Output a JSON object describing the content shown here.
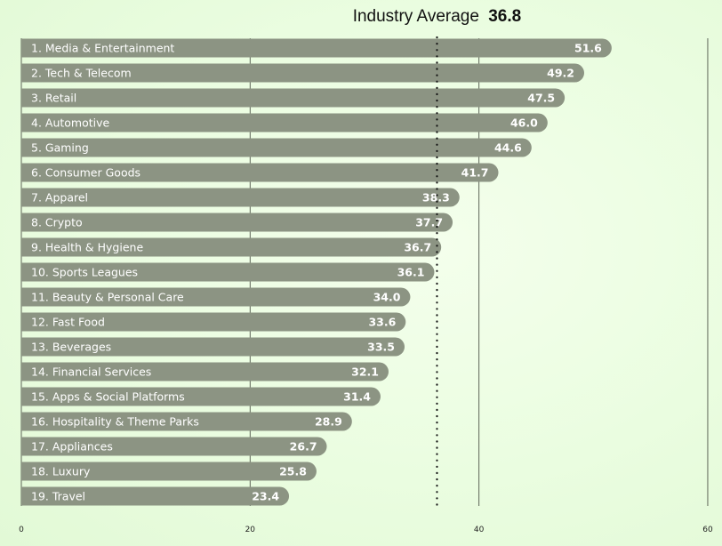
{
  "chart_data": {
    "type": "bar",
    "orientation": "horizontal",
    "title": "",
    "xlabel": "",
    "ylabel": "",
    "xlim": [
      0,
      60
    ],
    "xticks": [
      0,
      20,
      40,
      60
    ],
    "grid": true,
    "bar_color": "#8c9483",
    "average": {
      "label": "Industry Average",
      "value": 36.8,
      "display": "36.8"
    },
    "categories": [
      "1. Media & Entertainment",
      "2. Tech & Telecom",
      "3. Retail",
      "4. Automotive",
      "5. Gaming",
      "6. Consumer Goods",
      "7. Apparel",
      "8. Crypto",
      "9. Health & Hygiene",
      "10. Sports Leagues",
      "11. Beauty & Personal Care",
      "12. Fast Food",
      "13. Beverages",
      "14. Financial Services",
      "15. Apps & Social Platforms",
      "16. Hospitality & Theme Parks",
      "17. Appliances",
      "18. Luxury",
      "19. Travel"
    ],
    "values": [
      51.6,
      49.2,
      47.5,
      46.0,
      44.6,
      41.7,
      38.3,
      37.7,
      36.7,
      36.1,
      34.0,
      33.6,
      33.5,
      32.1,
      31.4,
      28.9,
      26.7,
      25.8,
      23.4
    ],
    "value_labels": [
      "51.6",
      "49.2",
      "47.5",
      "46.0",
      "44.6",
      "41.7",
      "38.3",
      "37.7",
      "36.7",
      "36.1",
      "34.0",
      "33.6",
      "33.5",
      "32.1",
      "31.4",
      "28.9",
      "26.7",
      "25.8",
      "23.4"
    ]
  }
}
